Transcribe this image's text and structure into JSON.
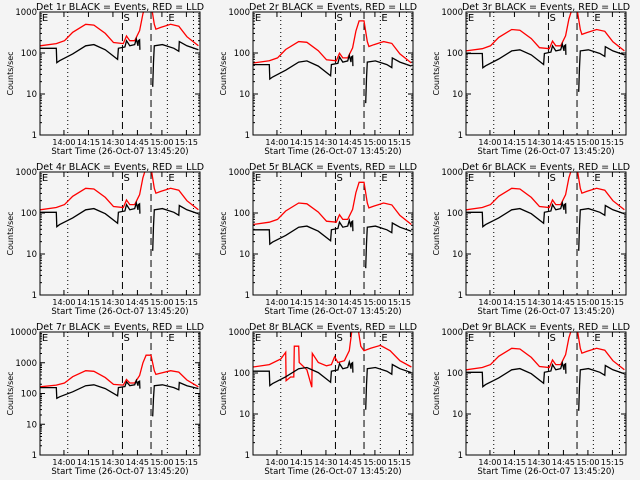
{
  "chart_data": {
    "type": "line",
    "layout": "3x3 grid",
    "ylabel": "Counts/sec",
    "xlabel": "Start Time (26-Oct-07 13:45:20)",
    "x_units": "minutes after 13:45:20",
    "xlim": [
      0,
      98
    ],
    "x_ticks": [
      {
        "t": 14.67,
        "label": "14:00"
      },
      {
        "t": 29.67,
        "label": "14:15"
      },
      {
        "t": 44.67,
        "label": "14:30"
      },
      {
        "t": 59.67,
        "label": "14:45"
      },
      {
        "t": 74.67,
        "label": "15:00"
      },
      {
        "t": 89.67,
        "label": "15:15"
      }
    ],
    "dotted_lines_t": [
      17,
      78,
      94
    ],
    "dashed_lines_t": [
      50.5,
      68
    ],
    "markers": [
      {
        "t": 0.5,
        "label": "E"
      },
      {
        "t": 50.5,
        "label": "S"
      },
      {
        "t": 78,
        "label": "E"
      }
    ],
    "series_colors": {
      "events": "#000000",
      "lld": "#ff0000"
    },
    "base_events": [
      [
        [
          0,
          130
        ],
        [
          10,
          130
        ],
        [
          10.3,
          58
        ],
        [
          12,
          65
        ],
        [
          20,
          95
        ],
        [
          28,
          150
        ],
        [
          33,
          160
        ],
        [
          40,
          120
        ],
        [
          47.5,
          70
        ],
        [
          48,
          130
        ],
        [
          52,
          140
        ],
        [
          53,
          200
        ],
        [
          55,
          150
        ],
        [
          58,
          160
        ],
        [
          59,
          220
        ],
        [
          60,
          150
        ],
        [
          60.3,
          200
        ],
        [
          61,
          210
        ],
        [
          61.2,
          120
        ]
      ],
      [
        [
          69,
          15
        ],
        [
          69.5,
          60
        ],
        [
          70,
          150
        ],
        [
          75,
          160
        ],
        [
          82,
          130
        ],
        [
          85,
          110
        ],
        [
          85.3,
          190
        ],
        [
          90,
          150
        ],
        [
          97,
          120
        ]
      ]
    ],
    "base_lld": [
      [
        [
          0,
          150
        ],
        [
          10,
          170
        ],
        [
          15,
          200
        ],
        [
          20,
          320
        ],
        [
          28,
          500
        ],
        [
          33,
          480
        ],
        [
          40,
          300
        ],
        [
          45,
          180
        ],
        [
          51,
          170
        ],
        [
          53,
          260
        ],
        [
          55,
          200
        ],
        [
          58,
          200
        ],
        [
          61,
          350
        ],
        [
          63,
          900
        ],
        [
          65,
          1600
        ],
        [
          68,
          1600
        ],
        [
          70,
          500
        ],
        [
          71,
          380
        ],
        [
          74,
          420
        ],
        [
          80,
          500
        ],
        [
          85,
          450
        ],
        [
          90,
          250
        ],
        [
          97,
          150
        ]
      ]
    ],
    "panels": [
      {
        "title": "Det 1r BLACK = Events, RED = LLD",
        "ylim": [
          1,
          1000
        ],
        "y_ticks": [
          "1",
          "10",
          "100",
          "1000"
        ],
        "events_scale": 1.0,
        "lld_scale": 1.0
      },
      {
        "title": "Det 2r BLACK = Events, RED = LLD",
        "ylim": [
          1,
          1000
        ],
        "y_ticks": [
          "1",
          "10",
          "100",
          "1000"
        ],
        "events_scale": 0.4,
        "lld_scale": 0.38
      },
      {
        "title": "Det 3r BLACK = Events, RED = LLD",
        "ylim": [
          1,
          1000
        ],
        "y_ticks": [
          "1",
          "10",
          "100",
          "1000"
        ],
        "events_scale": 0.75,
        "lld_scale": 0.75
      },
      {
        "title": "Det 4r BLACK = Events, RED = LLD",
        "ylim": [
          1,
          1000
        ],
        "y_ticks": [
          "1",
          "10",
          "100",
          "1000"
        ],
        "events_scale": 0.8,
        "lld_scale": 0.8
      },
      {
        "title": "Det 5r BLACK = Events, RED = LLD",
        "ylim": [
          1,
          1000
        ],
        "y_ticks": [
          "1",
          "10",
          "100",
          "1000"
        ],
        "events_scale": 0.3,
        "lld_scale": 0.35
      },
      {
        "title": "Det 6r BLACK = Events, RED = LLD",
        "ylim": [
          1,
          1000
        ],
        "y_ticks": [
          "1",
          "10",
          "100",
          "1000"
        ],
        "events_scale": 0.8,
        "lld_scale": 0.8
      },
      {
        "title": "Det 7r BLACK = Events, RED = LLD",
        "ylim": [
          1,
          10000
        ],
        "y_ticks": [
          "1",
          "10",
          "100",
          "1000",
          "10000"
        ],
        "events_scale": 1.2,
        "lld_scale": 1.1
      },
      {
        "title": "Det 8r BLACK = Events, RED = LLD",
        "ylim": [
          1,
          1000
        ],
        "y_ticks": [
          "1",
          "10",
          "100",
          "1000"
        ],
        "events_scale": 0.85,
        "lld_scale": 0.9,
        "lld_override": [
          [
            [
              0,
              140
            ],
            [
              10,
              160
            ],
            [
              17,
              220
            ],
            [
              20,
              320
            ],
            [
              20.3,
              65
            ],
            [
              23,
              80
            ],
            [
              25,
              80
            ],
            [
              25.3,
              450
            ],
            [
              28,
              450
            ],
            [
              28.3,
              180
            ],
            [
              33,
              120
            ],
            [
              36,
              45
            ],
            [
              36.3,
              300
            ],
            [
              40,
              180
            ],
            [
              45,
              150
            ],
            [
              48,
              160
            ],
            [
              50,
              250
            ],
            [
              52,
              180
            ],
            [
              56,
              200
            ],
            [
              59,
              350
            ],
            [
              61,
              1500
            ],
            [
              64,
              1500
            ],
            [
              66,
              450
            ],
            [
              68,
              350
            ],
            [
              72,
              400
            ],
            [
              78,
              470
            ],
            [
              84,
              350
            ],
            [
              90,
              200
            ],
            [
              97,
              140
            ]
          ]
        ]
      },
      {
        "title": "Det 9r BLACK = Events, RED = LLD",
        "ylim": [
          1,
          1000
        ],
        "y_ticks": [
          "1",
          "10",
          "100",
          "1000"
        ],
        "events_scale": 0.8,
        "lld_scale": 0.8
      }
    ]
  }
}
